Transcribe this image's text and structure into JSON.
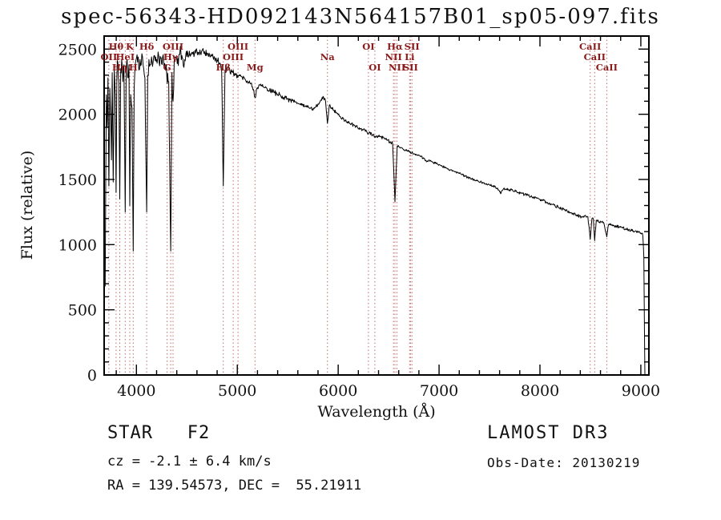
{
  "title": "spec-56343-HD092143N564157B01_sp05-097.fits",
  "footer": {
    "class_label": "STAR   F2",
    "survey": "LAMOST DR3",
    "cz": "cz = -2.1 ± 6.4 km/s",
    "obs_date": "Obs-Date: 20130219",
    "radec": "RA = 139.54573, DEC =  55.21911"
  },
  "chart_data": {
    "type": "line",
    "title": "spec-56343-HD092143N564157B01_sp05-097.fits",
    "xlabel": "Wavelength (Å)",
    "ylabel": "Flux (relative)",
    "xlim": [
      3680,
      9080
    ],
    "ylim": [
      0,
      2600
    ],
    "x_major_ticks": [
      4000,
      5000,
      6000,
      7000,
      8000,
      9000
    ],
    "x_minor_step": 200,
    "y_major_ticks": [
      0,
      500,
      1000,
      1500,
      2000,
      2500
    ],
    "y_minor_step": 100,
    "grid": false,
    "legend": "none",
    "colors": {
      "spectrum": "#000000",
      "frame": "#000000",
      "marker_line": "#c46a6a",
      "marker_label": "#8b1a1a"
    },
    "spectral_lines": [
      {
        "label": "OII",
        "wavelength": 3727,
        "row": 2
      },
      {
        "label": "Hθ",
        "wavelength": 3798,
        "row": 1
      },
      {
        "label": "Hη",
        "wavelength": 3835,
        "row": 3
      },
      {
        "label": "HeI",
        "wavelength": 3889,
        "row": 2
      },
      {
        "label": "K",
        "wavelength": 3934,
        "row": 1
      },
      {
        "label": "H",
        "wavelength": 3968,
        "row": 3
      },
      {
        "label": "Hδ",
        "wavelength": 4102,
        "row": 1
      },
      {
        "label": "G",
        "wavelength": 4304,
        "row": 3
      },
      {
        "label": "Hγ",
        "wavelength": 4340,
        "row": 2
      },
      {
        "label": "OIII",
        "wavelength": 4363,
        "row": 1
      },
      {
        "label": "Hβ",
        "wavelength": 4861,
        "row": 3
      },
      {
        "label": "OIII",
        "wavelength": 4959,
        "row": 2
      },
      {
        "label": "OIII",
        "wavelength": 5007,
        "row": 1
      },
      {
        "label": "Mg",
        "wavelength": 5175,
        "row": 3
      },
      {
        "label": "Na",
        "wavelength": 5893,
        "row": 2
      },
      {
        "label": "OI",
        "wavelength": 6300,
        "row": 1
      },
      {
        "label": "OI",
        "wavelength": 6363,
        "row": 3
      },
      {
        "label": "NII",
        "wavelength": 6548,
        "row": 2
      },
      {
        "label": "Hα",
        "wavelength": 6563,
        "row": 1
      },
      {
        "label": "NII",
        "wavelength": 6583,
        "row": 3
      },
      {
        "label": "Li",
        "wavelength": 6708,
        "row": 2
      },
      {
        "label": "SII",
        "wavelength": 6717,
        "row": 3
      },
      {
        "label": "SII",
        "wavelength": 6731,
        "row": 1
      },
      {
        "label": "CaII",
        "wavelength": 8498,
        "row": 1
      },
      {
        "label": "CaII",
        "wavelength": 8542,
        "row": 2
      },
      {
        "label": "CaII",
        "wavelength": 8662,
        "row": 3
      }
    ],
    "spectrum": {
      "units": "wavelength_angstrom_vs_relative_flux",
      "noise_seed": 12,
      "noise_regions": [
        [
          3690,
          4450,
          70
        ],
        [
          4450,
          5000,
          28
        ],
        [
          5000,
          5600,
          20
        ],
        [
          5600,
          6600,
          13
        ],
        [
          6600,
          7600,
          9
        ],
        [
          7600,
          9030,
          11
        ],
        [
          9030,
          9080,
          0
        ]
      ],
      "anchors": [
        [
          3690,
          680
        ],
        [
          3696,
          1500
        ],
        [
          3702,
          2150
        ],
        [
          3710,
          1900
        ],
        [
          3718,
          2280
        ],
        [
          3727,
          1450
        ],
        [
          3736,
          2200
        ],
        [
          3744,
          2000
        ],
        [
          3752,
          1650
        ],
        [
          3760,
          2320
        ],
        [
          3770,
          1480
        ],
        [
          3780,
          2350
        ],
        [
          3790,
          2150
        ],
        [
          3798,
          1400
        ],
        [
          3806,
          2300
        ],
        [
          3816,
          2400
        ],
        [
          3826,
          2250
        ],
        [
          3835,
          1350
        ],
        [
          3844,
          2350
        ],
        [
          3854,
          2420
        ],
        [
          3866,
          2250
        ],
        [
          3876,
          2380
        ],
        [
          3889,
          1250
        ],
        [
          3898,
          2320
        ],
        [
          3908,
          2420
        ],
        [
          3918,
          2280
        ],
        [
          3926,
          2380
        ],
        [
          3934,
          1300
        ],
        [
          3944,
          2150
        ],
        [
          3956,
          2050
        ],
        [
          3968,
          950
        ],
        [
          3978,
          2200
        ],
        [
          3988,
          2380
        ],
        [
          4000,
          2430
        ],
        [
          4012,
          2400
        ],
        [
          4024,
          2340
        ],
        [
          4036,
          2420
        ],
        [
          4048,
          2380
        ],
        [
          4060,
          2440
        ],
        [
          4072,
          2350
        ],
        [
          4084,
          2280
        ],
        [
          4102,
          1250
        ],
        [
          4112,
          2300
        ],
        [
          4124,
          2420
        ],
        [
          4136,
          2380
        ],
        [
          4150,
          2440
        ],
        [
          4165,
          2400
        ],
        [
          4180,
          2450
        ],
        [
          4200,
          2420
        ],
        [
          4220,
          2450
        ],
        [
          4240,
          2430
        ],
        [
          4260,
          2440
        ],
        [
          4280,
          2390
        ],
        [
          4300,
          2310
        ],
        [
          4320,
          2250
        ],
        [
          4340,
          950
        ],
        [
          4352,
          2320
        ],
        [
          4363,
          2100
        ],
        [
          4375,
          2420
        ],
        [
          4390,
          2440
        ],
        [
          4410,
          2430
        ],
        [
          4430,
          2460
        ],
        [
          4450,
          2450
        ],
        [
          4471,
          2360
        ],
        [
          4490,
          2460
        ],
        [
          4510,
          2465
        ],
        [
          4530,
          2455
        ],
        [
          4550,
          2475
        ],
        [
          4575,
          2460
        ],
        [
          4600,
          2480
        ],
        [
          4625,
          2470
        ],
        [
          4650,
          2490
        ],
        [
          4675,
          2480
        ],
        [
          4700,
          2470
        ],
        [
          4725,
          2455
        ],
        [
          4750,
          2450
        ],
        [
          4775,
          2435
        ],
        [
          4800,
          2415
        ],
        [
          4825,
          2395
        ],
        [
          4845,
          2330
        ],
        [
          4861,
          1450
        ],
        [
          4878,
          2340
        ],
        [
          4900,
          2355
        ],
        [
          4925,
          2340
        ],
        [
          4950,
          2330
        ],
        [
          4975,
          2315
        ],
        [
          5000,
          2300
        ],
        [
          5025,
          2295
        ],
        [
          5050,
          2280
        ],
        [
          5075,
          2270
        ],
        [
          5100,
          2255
        ],
        [
          5125,
          2240
        ],
        [
          5150,
          2210
        ],
        [
          5175,
          2130
        ],
        [
          5195,
          2200
        ],
        [
          5220,
          2225
        ],
        [
          5245,
          2215
        ],
        [
          5270,
          2205
        ],
        [
          5295,
          2195
        ],
        [
          5320,
          2185
        ],
        [
          5345,
          2175
        ],
        [
          5370,
          2165
        ],
        [
          5395,
          2155
        ],
        [
          5420,
          2150
        ],
        [
          5445,
          2140
        ],
        [
          5470,
          2130
        ],
        [
          5495,
          2120
        ],
        [
          5520,
          2110
        ],
        [
          5545,
          2105
        ],
        [
          5570,
          2095
        ],
        [
          5595,
          2085
        ],
        [
          5620,
          2080
        ],
        [
          5645,
          2070
        ],
        [
          5670,
          2060
        ],
        [
          5695,
          2055
        ],
        [
          5720,
          2045
        ],
        [
          5745,
          2040
        ],
        [
          5770,
          2050
        ],
        [
          5800,
          2080
        ],
        [
          5830,
          2110
        ],
        [
          5855,
          2130
        ],
        [
          5875,
          2100
        ],
        [
          5893,
          1930
        ],
        [
          5912,
          2070
        ],
        [
          5935,
          2050
        ],
        [
          5960,
          2030
        ],
        [
          5985,
          2010
        ],
        [
          6010,
          1990
        ],
        [
          6040,
          1970
        ],
        [
          6070,
          1950
        ],
        [
          6100,
          1935
        ],
        [
          6130,
          1925
        ],
        [
          6160,
          1915
        ],
        [
          6190,
          1900
        ],
        [
          6220,
          1890
        ],
        [
          6250,
          1880
        ],
        [
          6280,
          1870
        ],
        [
          6300,
          1855
        ],
        [
          6330,
          1850
        ],
        [
          6363,
          1830
        ],
        [
          6395,
          1835
        ],
        [
          6425,
          1825
        ],
        [
          6455,
          1815
        ],
        [
          6485,
          1800
        ],
        [
          6515,
          1790
        ],
        [
          6540,
          1775
        ],
        [
          6563,
          1330
        ],
        [
          6585,
          1755
        ],
        [
          6610,
          1745
        ],
        [
          6640,
          1735
        ],
        [
          6670,
          1725
        ],
        [
          6700,
          1715
        ],
        [
          6730,
          1705
        ],
        [
          6760,
          1695
        ],
        [
          6790,
          1685
        ],
        [
          6820,
          1675
        ],
        [
          6850,
          1660
        ],
        [
          6875,
          1635
        ],
        [
          6900,
          1650
        ],
        [
          6930,
          1635
        ],
        [
          6960,
          1625
        ],
        [
          6990,
          1615
        ],
        [
          7020,
          1605
        ],
        [
          7050,
          1595
        ],
        [
          7080,
          1585
        ],
        [
          7110,
          1575
        ],
        [
          7140,
          1565
        ],
        [
          7170,
          1555
        ],
        [
          7200,
          1545
        ],
        [
          7230,
          1535
        ],
        [
          7260,
          1525
        ],
        [
          7290,
          1515
        ],
        [
          7320,
          1505
        ],
        [
          7350,
          1498
        ],
        [
          7380,
          1490
        ],
        [
          7410,
          1482
        ],
        [
          7440,
          1475
        ],
        [
          7470,
          1468
        ],
        [
          7500,
          1460
        ],
        [
          7530,
          1450
        ],
        [
          7560,
          1442
        ],
        [
          7590,
          1420
        ],
        [
          7615,
          1395
        ],
        [
          7640,
          1430
        ],
        [
          7670,
          1428
        ],
        [
          7700,
          1422
        ],
        [
          7730,
          1415
        ],
        [
          7760,
          1408
        ],
        [
          7790,
          1400
        ],
        [
          7820,
          1392
        ],
        [
          7850,
          1385
        ],
        [
          7880,
          1378
        ],
        [
          7910,
          1370
        ],
        [
          7940,
          1362
        ],
        [
          7970,
          1355
        ],
        [
          8000,
          1348
        ],
        [
          8030,
          1338
        ],
        [
          8060,
          1328
        ],
        [
          8090,
          1318
        ],
        [
          8120,
          1308
        ],
        [
          8150,
          1298
        ],
        [
          8180,
          1288
        ],
        [
          8210,
          1278
        ],
        [
          8240,
          1268
        ],
        [
          8270,
          1258
        ],
        [
          8300,
          1248
        ],
        [
          8330,
          1238
        ],
        [
          8360,
          1228
        ],
        [
          8390,
          1218
        ],
        [
          8420,
          1210
        ],
        [
          8450,
          1225
        ],
        [
          8475,
          1215
        ],
        [
          8498,
          1040
        ],
        [
          8515,
          1200
        ],
        [
          8530,
          1195
        ],
        [
          8542,
          1030
        ],
        [
          8558,
          1185
        ],
        [
          8580,
          1180
        ],
        [
          8605,
          1175
        ],
        [
          8630,
          1170
        ],
        [
          8662,
          1060
        ],
        [
          8680,
          1155
        ],
        [
          8705,
          1150
        ],
        [
          8730,
          1145
        ],
        [
          8760,
          1140
        ],
        [
          8790,
          1135
        ],
        [
          8820,
          1128
        ],
        [
          8850,
          1122
        ],
        [
          8880,
          1115
        ],
        [
          8910,
          1108
        ],
        [
          8940,
          1102
        ],
        [
          8970,
          1096
        ],
        [
          9000,
          1090
        ],
        [
          9010,
          1085
        ],
        [
          9020,
          1070
        ],
        [
          9030,
          900
        ],
        [
          9036,
          300
        ],
        [
          9040,
          0
        ],
        [
          9072,
          0
        ]
      ]
    }
  }
}
